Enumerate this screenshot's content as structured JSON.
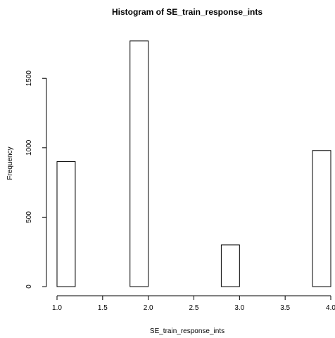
{
  "chart_data": {
    "type": "bar",
    "title": "Histogram of SE_train_response_ints",
    "xlabel": "SE_train_response_ints",
    "ylabel": "Frequency",
    "bins": [
      {
        "x0": 1.0,
        "x1": 1.2,
        "count": 900
      },
      {
        "x0": 1.2,
        "x1": 1.4,
        "count": 0
      },
      {
        "x0": 1.4,
        "x1": 1.6,
        "count": 0
      },
      {
        "x0": 1.6,
        "x1": 1.8,
        "count": 0
      },
      {
        "x0": 1.8,
        "x1": 2.0,
        "count": 1770
      },
      {
        "x0": 2.0,
        "x1": 2.2,
        "count": 0
      },
      {
        "x0": 2.2,
        "x1": 2.4,
        "count": 0
      },
      {
        "x0": 2.4,
        "x1": 2.6,
        "count": 0
      },
      {
        "x0": 2.6,
        "x1": 2.8,
        "count": 0
      },
      {
        "x0": 2.8,
        "x1": 3.0,
        "count": 300
      },
      {
        "x0": 3.0,
        "x1": 3.2,
        "count": 0
      },
      {
        "x0": 3.2,
        "x1": 3.4,
        "count": 0
      },
      {
        "x0": 3.4,
        "x1": 3.6,
        "count": 0
      },
      {
        "x0": 3.6,
        "x1": 3.8,
        "count": 0
      },
      {
        "x0": 3.8,
        "x1": 4.0,
        "count": 980
      }
    ],
    "xticks": [
      1.0,
      1.5,
      2.0,
      2.5,
      3.0,
      3.5,
      4.0
    ],
    "xtick_labels": [
      "1.0",
      "1.5",
      "2.0",
      "2.5",
      "3.0",
      "3.5",
      "4.0"
    ],
    "yticks": [
      0,
      500,
      1000,
      1500
    ],
    "ytick_labels": [
      "0",
      "500",
      "1000",
      "1500"
    ],
    "xlim": [
      1.0,
      4.0
    ],
    "ylim": [
      0,
      1770
    ],
    "grid": false,
    "bar_fill": "#ffffff",
    "bar_stroke": "#000000"
  }
}
